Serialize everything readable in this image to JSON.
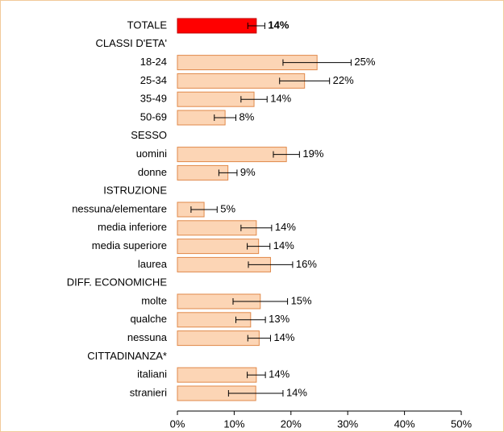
{
  "chart_data": {
    "type": "bar",
    "orientation": "horizontal",
    "categories": [
      "TOTALE",
      "CLASSI D'ETA'",
      "18-24",
      "25-34",
      "35-49",
      "50-69",
      "SESSO",
      "uomini",
      "donne",
      "ISTRUZIONE",
      "nessuna/elementare",
      "media inferiore",
      "media superiore",
      "laurea",
      "DIFF. ECONOMICHE",
      "molte",
      "qualche",
      "nessuna",
      "CITTADINANZA*",
      "italiani",
      "stranieri"
    ],
    "values": [
      13.9,
      null,
      24.6,
      22.4,
      13.5,
      8.4,
      null,
      19.2,
      8.9,
      null,
      4.7,
      13.9,
      14.3,
      16.4,
      null,
      14.6,
      12.9,
      14.4,
      null,
      13.9,
      13.8
    ],
    "errors": [
      1.5,
      null,
      6,
      4.4,
      2.3,
      1.9,
      null,
      2.3,
      1.6,
      null,
      2.3,
      2.7,
      2,
      3.9,
      null,
      4.8,
      2.6,
      2,
      null,
      1.6,
      4.8
    ],
    "value_labels": [
      "14%",
      null,
      "25%",
      "22%",
      "14%",
      "8%",
      null,
      "19%",
      "9%",
      null,
      "5%",
      "14%",
      "14%",
      "16%",
      null,
      "15%",
      "13%",
      "14%",
      null,
      "14%",
      "14%"
    ],
    "colors": [
      "#ff0000",
      null,
      "#fcd5b5",
      "#fcd5b5",
      "#fcd5b5",
      "#fcd5b5",
      null,
      "#fcd5b5",
      "#fcd5b5",
      null,
      "#fcd5b5",
      "#fcd5b5",
      "#fcd5b5",
      "#fcd5b5",
      null,
      "#fcd5b5",
      "#fcd5b5",
      "#fcd5b5",
      null,
      "#fcd5b5",
      "#fcd5b5"
    ],
    "xlim": [
      0,
      50
    ],
    "xticks": [
      {
        "value": 0,
        "label": "0%"
      },
      {
        "value": 10,
        "label": "10%"
      },
      {
        "value": 20,
        "label": "20%"
      },
      {
        "value": 30,
        "label": "30%"
      },
      {
        "value": 40,
        "label": "40%"
      },
      {
        "value": 50,
        "label": "50%"
      }
    ]
  }
}
